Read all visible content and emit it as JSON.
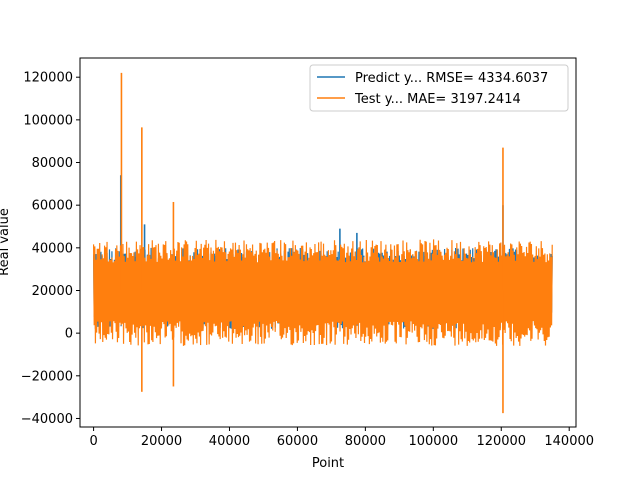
{
  "chart_data": {
    "type": "line",
    "title": "",
    "xlabel": "Point",
    "ylabel": "Real value",
    "xlim": [
      -4000,
      142000
    ],
    "ylim": [
      -44000,
      129000
    ],
    "xticks": [
      0,
      20000,
      40000,
      60000,
      80000,
      100000,
      120000,
      140000
    ],
    "yticks": [
      -40000,
      -20000,
      0,
      20000,
      40000,
      60000,
      80000,
      100000,
      120000
    ],
    "xticklabels": [
      "0",
      "20000",
      "40000",
      "60000",
      "80000",
      "100000",
      "120000",
      "140000"
    ],
    "yticklabels": [
      "−40000",
      "−20000",
      "0",
      "20000",
      "40000",
      "60000",
      "80000",
      "100000",
      "120000"
    ],
    "legend_position": "top-right",
    "grid": false,
    "series": [
      {
        "name": "Predict y... RMSE= 4334.6037",
        "color": "#1f77b4",
        "x_range": [
          0,
          135000
        ],
        "band": {
          "lower": 2000,
          "upper": 40000,
          "center": 20000
        },
        "spikes": [
          {
            "x": 8000,
            "y": 74000
          },
          {
            "x": 15000,
            "y": 51000
          },
          {
            "x": 72500,
            "y": 49000
          },
          {
            "x": 77500,
            "y": 47000
          },
          {
            "x": 120500,
            "y": 60000
          }
        ]
      },
      {
        "name": "Test y... MAE= 3197.2414",
        "color": "#ff7f0e",
        "x_range": [
          0,
          135000
        ],
        "band": {
          "lower": -6000,
          "upper": 44000,
          "center": 20000
        },
        "spikes": [
          {
            "x": 8200,
            "y": 122000
          },
          {
            "x": 14200,
            "y": 96500
          },
          {
            "x": 14200,
            "y": -27500
          },
          {
            "x": 23500,
            "y": 61500
          },
          {
            "x": 23500,
            "y": -25000
          },
          {
            "x": 120500,
            "y": 87000
          },
          {
            "x": 120500,
            "y": -37500
          }
        ]
      }
    ]
  }
}
